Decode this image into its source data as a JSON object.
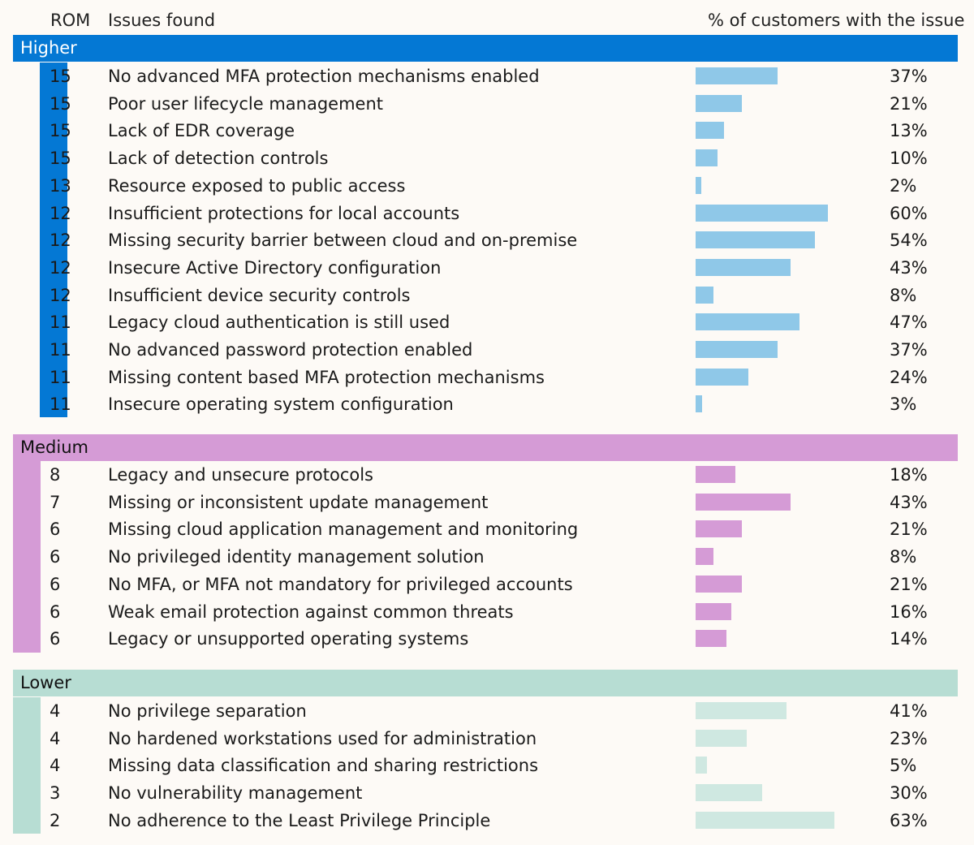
{
  "headers": {
    "rom": "ROM",
    "issues": "Issues found",
    "pct": "% of customers with the issue"
  },
  "chart_data": {
    "type": "bar",
    "xlim": [
      0,
      100
    ],
    "groups": [
      {
        "label": "Higher",
        "band_color": "#0478d4",
        "label_color": "#ffffff",
        "bar_color": "#8fc8e8",
        "rows": [
          {
            "rom": "15",
            "issue": "No advanced MFA protection mechanisms enabled",
            "value": 37,
            "label": "37%"
          },
          {
            "rom": "15",
            "issue": "Poor user lifecycle management",
            "value": 21,
            "label": "21%"
          },
          {
            "rom": "15",
            "issue": "Lack of EDR coverage",
            "value": 13,
            "label": "13%"
          },
          {
            "rom": "15",
            "issue": "Lack of detection controls",
            "value": 10,
            "label": "10%"
          },
          {
            "rom": "13",
            "issue": "Resource exposed to public access",
            "value": 2,
            "label": "2%"
          },
          {
            "rom": "12",
            "issue": "Insufficient protections for local accounts",
            "value": 60,
            "label": "60%"
          },
          {
            "rom": "12",
            "issue": "Missing security barrier between cloud and on-premise",
            "value": 54,
            "label": "54%"
          },
          {
            "rom": "12",
            "issue": "Insecure Active Directory configuration",
            "value": 43,
            "label": "43%"
          },
          {
            "rom": "12",
            "issue": "Insufficient device security controls",
            "value": 8,
            "label": "8%"
          },
          {
            "rom": "11",
            "issue": "Legacy cloud authentication is still used",
            "value": 47,
            "label": "47%"
          },
          {
            "rom": "11",
            "issue": "No advanced password protection enabled",
            "value": 37,
            "label": "37%"
          },
          {
            "rom": "11",
            "issue": "Missing content based MFA protection mechanisms",
            "value": 24,
            "label": "24%"
          },
          {
            "rom": "11",
            "issue": "Insecure operating system configuration",
            "value": 3,
            "label": "3%"
          }
        ]
      },
      {
        "label": "Medium",
        "band_color": "#d59bd6",
        "label_color": "#111111",
        "bar_color": "#d59bd6",
        "rows": [
          {
            "rom": "8",
            "issue": "Legacy and unsecure protocols",
            "value": 18,
            "label": "18%"
          },
          {
            "rom": "7",
            "issue": "Missing or inconsistent update management",
            "value": 43,
            "label": "43%"
          },
          {
            "rom": "6",
            "issue": "Missing cloud application management and monitoring",
            "value": 21,
            "label": "21%"
          },
          {
            "rom": "6",
            "issue": "No privileged identity management solution",
            "value": 8,
            "label": "8%"
          },
          {
            "rom": "6",
            "issue": "No MFA, or MFA not mandatory for privileged accounts",
            "value": 21,
            "label": "21%"
          },
          {
            "rom": "6",
            "issue": "Weak email protection against common threats",
            "value": 16,
            "label": "16%"
          },
          {
            "rom": "6",
            "issue": "Legacy or unsupported operating systems",
            "value": 14,
            "label": "14%"
          }
        ]
      },
      {
        "label": "Lower",
        "band_color": "#b7ddd3",
        "label_color": "#111111",
        "bar_color": "#cfe8e1",
        "rows": [
          {
            "rom": "4",
            "issue": "No privilege separation",
            "value": 41,
            "label": "41%"
          },
          {
            "rom": "4",
            "issue": "No hardened workstations used for administration",
            "value": 23,
            "label": "23%"
          },
          {
            "rom": "4",
            "issue": "Missing data classification and sharing restrictions",
            "value": 5,
            "label": "5%"
          },
          {
            "rom": "3",
            "issue": "No vulnerability management",
            "value": 30,
            "label": "30%"
          },
          {
            "rom": "2",
            "issue": "No adherence to the Least Privilege Principle",
            "value": 63,
            "label": "63%"
          }
        ]
      }
    ]
  }
}
